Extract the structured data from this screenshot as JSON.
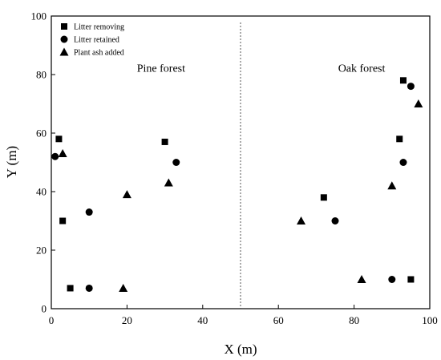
{
  "chart_data": {
    "type": "scatter",
    "xlabel": "X (m)",
    "ylabel": "Y (m)",
    "xlim": [
      0,
      100
    ],
    "ylim": [
      0,
      100
    ],
    "x_ticks": [
      0,
      20,
      40,
      60,
      80,
      100
    ],
    "y_ticks": [
      0,
      20,
      40,
      60,
      80,
      100
    ],
    "grid": false,
    "legend_position": "top-left",
    "divider": {
      "x": 50,
      "style": "dashed"
    },
    "annotations": [
      {
        "text": "Pine forest",
        "x": 29,
        "y": 81
      },
      {
        "text": "Oak forest",
        "x": 82,
        "y": 81
      }
    ],
    "series": [
      {
        "name": "Litter removing",
        "marker": "square",
        "color": "#000000",
        "points": [
          {
            "x": 2,
            "y": 58
          },
          {
            "x": 3,
            "y": 30
          },
          {
            "x": 5,
            "y": 7
          },
          {
            "x": 30,
            "y": 57
          },
          {
            "x": 72,
            "y": 38
          },
          {
            "x": 92,
            "y": 58
          },
          {
            "x": 93,
            "y": 78
          },
          {
            "x": 95,
            "y": 10
          }
        ]
      },
      {
        "name": "Litter retained",
        "marker": "circle",
        "color": "#000000",
        "points": [
          {
            "x": 1,
            "y": 52
          },
          {
            "x": 10,
            "y": 33
          },
          {
            "x": 10,
            "y": 7
          },
          {
            "x": 33,
            "y": 50
          },
          {
            "x": 75,
            "y": 30
          },
          {
            "x": 90,
            "y": 10
          },
          {
            "x": 93,
            "y": 50
          },
          {
            "x": 95,
            "y": 76
          }
        ]
      },
      {
        "name": "Plant ash added",
        "marker": "triangle",
        "color": "#000000",
        "points": [
          {
            "x": 3,
            "y": 53
          },
          {
            "x": 19,
            "y": 7
          },
          {
            "x": 20,
            "y": 39
          },
          {
            "x": 31,
            "y": 43
          },
          {
            "x": 66,
            "y": 30
          },
          {
            "x": 82,
            "y": 10
          },
          {
            "x": 90,
            "y": 42
          },
          {
            "x": 97,
            "y": 70
          }
        ]
      }
    ]
  }
}
